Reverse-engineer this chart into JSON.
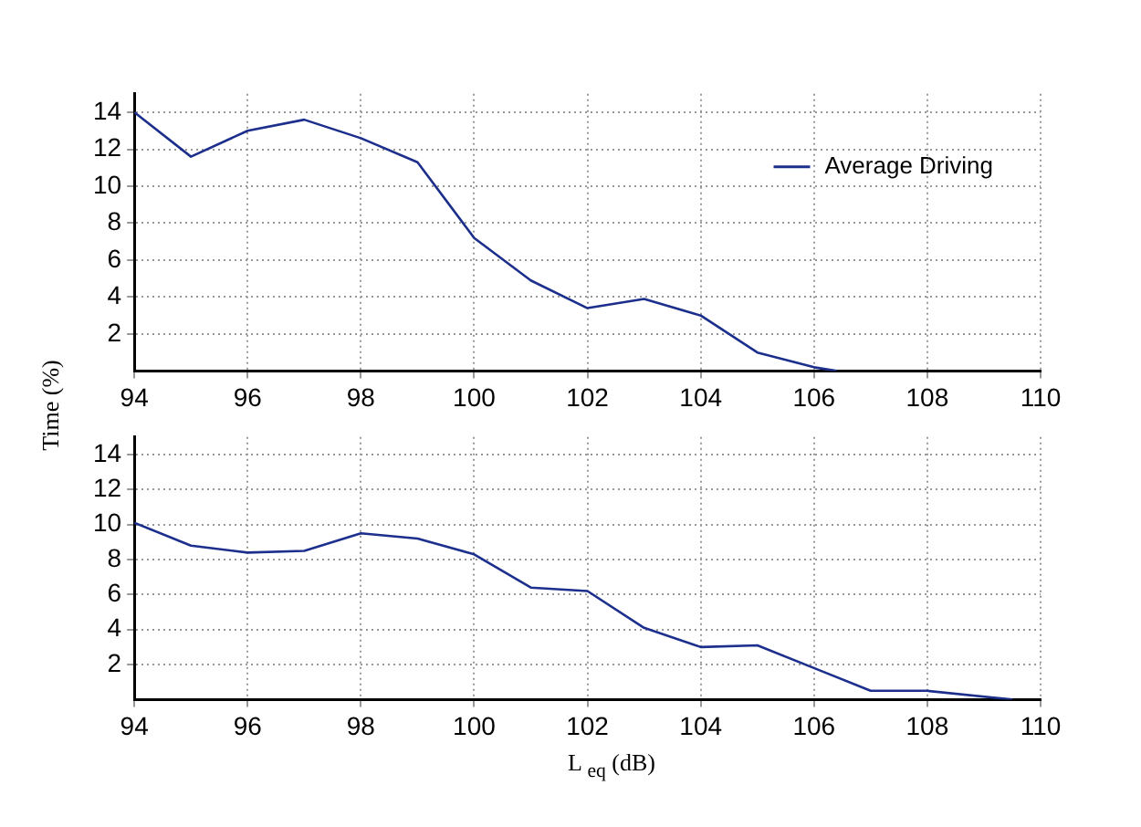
{
  "chart_data": [
    {
      "type": "line",
      "ylabel": "Time (%)",
      "x": [
        94,
        95,
        96,
        97,
        98,
        99,
        100,
        101,
        102,
        103,
        104,
        105,
        106,
        106.4
      ],
      "xlim": [
        94,
        110
      ],
      "xticks": [
        94,
        96,
        98,
        100,
        102,
        104,
        106,
        108,
        110
      ],
      "ylim": [
        0,
        15
      ],
      "yticks": [
        2,
        4,
        6,
        8,
        10,
        12,
        14
      ],
      "grid": true,
      "legend": "top right",
      "marker": "none",
      "series": [
        {
          "name": "Average Driving",
          "color": "#1c2f8c",
          "values": [
            14,
            11.6,
            13,
            13.6,
            12.6,
            11.3,
            7.2,
            4.9,
            3.4,
            3.9,
            3.0,
            1.0,
            0.2,
            0
          ]
        }
      ]
    },
    {
      "type": "line",
      "xlabel": "L $_{eq}$ (dB)",
      "x": [
        94,
        95,
        96,
        97,
        98,
        99,
        100,
        101,
        102,
        103,
        104,
        105,
        106,
        107,
        108,
        109.5
      ],
      "xlim": [
        94,
        110
      ],
      "xticks": [
        94,
        96,
        98,
        100,
        102,
        104,
        106,
        108,
        110
      ],
      "ylim": [
        0,
        15
      ],
      "yticks": [
        2,
        4,
        6,
        8,
        10,
        12,
        14
      ],
      "grid": true,
      "marker": "none",
      "series": [
        {
          "color": "#1c2f8c",
          "values": [
            10.1,
            8.8,
            8.4,
            8.5,
            9.5,
            9.2,
            8.3,
            6.4,
            6.2,
            4.1,
            3.0,
            3.1,
            1.8,
            0.5,
            0.5,
            0
          ]
        }
      ]
    }
  ]
}
